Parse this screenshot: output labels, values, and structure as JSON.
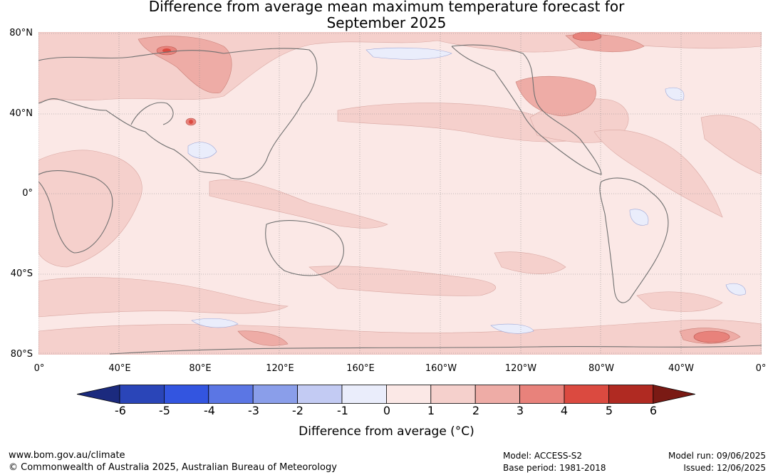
{
  "title_line1": "Difference from average mean maximum temperature forecast for",
  "title_line2": "September 2025",
  "lat_labels": [
    "80°N",
    "40°N",
    "0°",
    "40°S",
    "80°S"
  ],
  "lon_labels": [
    "0°",
    "40°E",
    "80°E",
    "120°E",
    "160°E",
    "160°W",
    "120°W",
    "80°W",
    "40°W",
    "0°"
  ],
  "colorbar": {
    "ticks": [
      "-6",
      "-5",
      "-4",
      "-3",
      "-2",
      "-1",
      "0",
      "1",
      "2",
      "3",
      "4",
      "5",
      "6"
    ],
    "colors": [
      "#1b2a7e",
      "#2a45b8",
      "#3355e0",
      "#5b76e4",
      "#8a9eea",
      "#c3cbf3",
      "#eaedfb",
      "#fbe8e6",
      "#f5d0cc",
      "#eeaca6",
      "#e8827b",
      "#db4a40",
      "#b02a22",
      "#7a1a14"
    ],
    "label": "Difference from average (°C)"
  },
  "footer": {
    "website": "www.bom.gov.au/climate",
    "copyright": "© Commonwealth of Australia 2025, Australian Bureau of Meteorology",
    "model": "Model: ACCESS-S2",
    "base_period": "Base period: 1981-2018",
    "model_run": "Model run: 09/06/2025",
    "issued": "Issued: 12/06/2025"
  }
}
